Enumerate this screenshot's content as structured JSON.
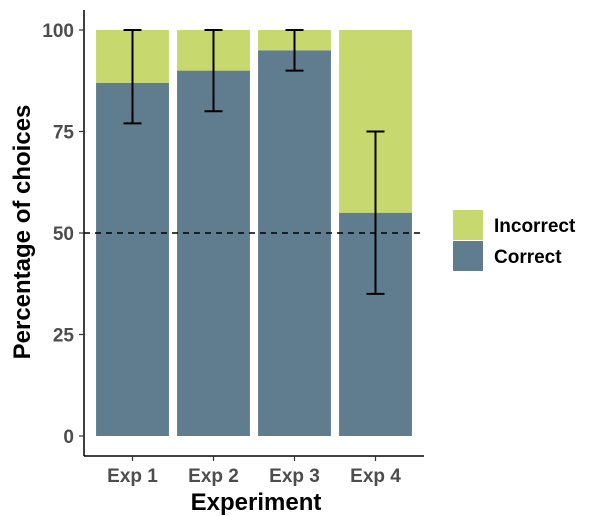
{
  "chart_data": {
    "type": "bar",
    "stacked": true,
    "xlabel": "Experiment",
    "ylabel": "Percentage of choices",
    "categories": [
      "Exp 1",
      "Exp 2",
      "Exp 3",
      "Exp 4"
    ],
    "yticks": [
      0,
      25,
      50,
      75,
      100
    ],
    "ylim": [
      0,
      100
    ],
    "series": [
      {
        "name": "Correct",
        "color": "#607d8f",
        "values": [
          87,
          90,
          95,
          55
        ]
      },
      {
        "name": "Incorrect",
        "color": "#c7d86f",
        "values": [
          13,
          10,
          5,
          45
        ]
      }
    ],
    "error_bars": [
      {
        "category": "Exp 1",
        "low": 77,
        "high": 100
      },
      {
        "category": "Exp 2",
        "low": 80,
        "high": 100
      },
      {
        "category": "Exp 3",
        "low": 90,
        "high": 100
      },
      {
        "category": "Exp 4",
        "low": 35,
        "high": 75
      }
    ],
    "reference_line": {
      "y": 50,
      "style": "dashed"
    },
    "legend_order": [
      "Incorrect",
      "Correct"
    ],
    "legend_position": "right",
    "grid": false
  }
}
